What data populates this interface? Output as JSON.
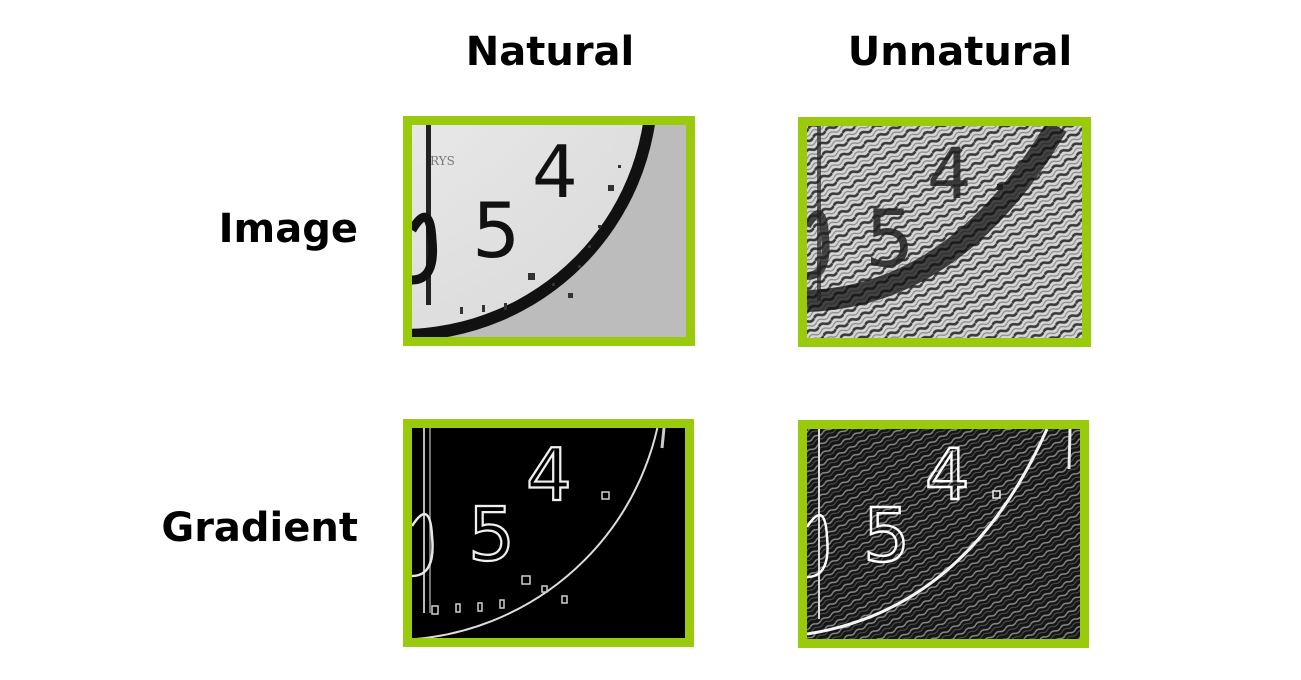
{
  "columns": {
    "natural": "Natural",
    "unnatural": "Unnatural"
  },
  "rows": {
    "image": "Image",
    "gradient": "Gradient"
  },
  "panel_content": {
    "clock_numbers": [
      "5",
      "4"
    ],
    "faint_brand_text": "RYS"
  },
  "colors": {
    "frame_border": "#9aca0c",
    "background": "#ffffff",
    "text": "#000000"
  }
}
